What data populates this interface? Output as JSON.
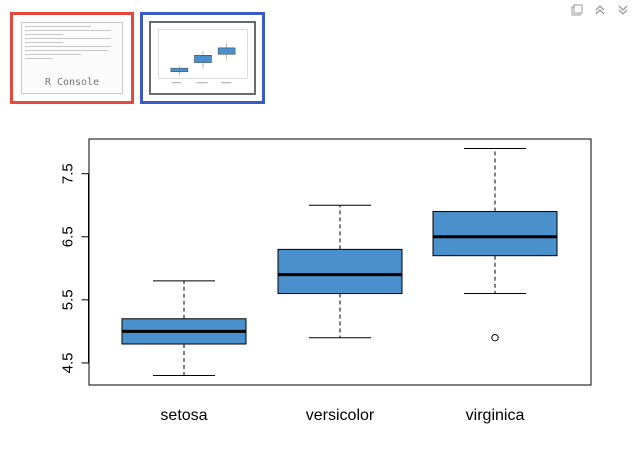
{
  "window": {
    "controls": [
      {
        "name": "export-icon"
      },
      {
        "name": "collapse-up-icon"
      },
      {
        "name": "collapse-down-icon"
      }
    ]
  },
  "thumbnails": {
    "console": {
      "label": "R Console",
      "highlight_color": "#e8473d"
    },
    "plot": {
      "highlight_color": "#3a5bc7"
    }
  },
  "chart_data": {
    "type": "boxplot",
    "title": "",
    "xlabel": "",
    "ylabel": "",
    "categories": [
      "setosa",
      "versicolor",
      "virginica"
    ],
    "boxes": [
      {
        "category": "setosa",
        "whisker_low": 4.3,
        "q1": 4.8,
        "median": 5.0,
        "q3": 5.2,
        "whisker_high": 5.8,
        "outliers": []
      },
      {
        "category": "versicolor",
        "whisker_low": 4.9,
        "q1": 5.6,
        "median": 5.9,
        "q3": 6.3,
        "whisker_high": 7.0,
        "outliers": []
      },
      {
        "category": "virginica",
        "whisker_low": 5.6,
        "q1": 6.2,
        "median": 6.5,
        "q3": 6.9,
        "whisker_high": 7.9,
        "outliers": [
          4.9
        ]
      }
    ],
    "y_ticks": [
      4.5,
      5.5,
      6.5,
      7.5
    ],
    "y_tick_labels": [
      "4.5",
      "5.5",
      "6.5",
      "7.5"
    ],
    "ylim": [
      4.15,
      8.05
    ],
    "box_color": "#4a90cc",
    "grid": false,
    "legend": "none"
  }
}
